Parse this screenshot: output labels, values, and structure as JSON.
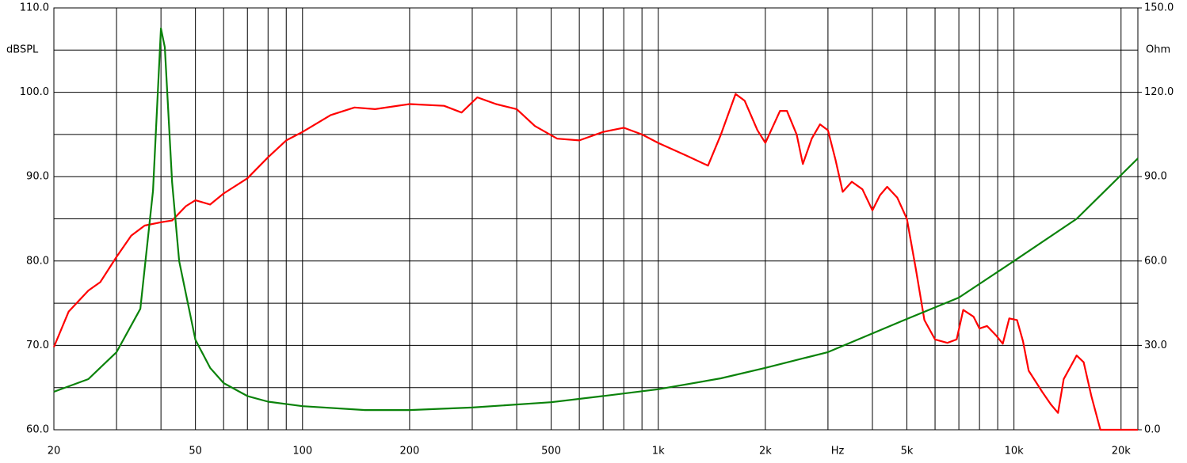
{
  "chart_data": {
    "type": "line",
    "x_scale": "log",
    "xlabel": "Hz",
    "ylabel": "dBSPL",
    "y2label": "Ohm",
    "xlim": [
      20,
      22300
    ],
    "ylim": [
      60,
      110
    ],
    "y2lim": [
      0,
      150
    ],
    "grid": true,
    "xticks": [
      20,
      50,
      100,
      200,
      500,
      {
        "value": 1000,
        "label": "1k"
      },
      {
        "value": 2000,
        "label": "2k"
      },
      {
        "value": 5000,
        "label": "5k"
      },
      {
        "value": 10000,
        "label": "10k"
      },
      {
        "value": 20000,
        "label": "20k"
      }
    ],
    "xminor": [
      30,
      40,
      60,
      70,
      80,
      90,
      300,
      400,
      600,
      700,
      800,
      900,
      3000,
      4000,
      6000,
      7000,
      8000,
      9000
    ],
    "yticks": [
      {
        "value": 60,
        "label": "60.0"
      },
      {
        "value": 70,
        "label": "70.0"
      },
      {
        "value": 80,
        "label": "80.0"
      },
      {
        "value": 90,
        "label": "90.0"
      },
      {
        "value": 100,
        "label": "100.0"
      },
      {
        "value": 110,
        "label": "110.0"
      }
    ],
    "yminor": [
      65,
      75,
      85,
      95,
      105
    ],
    "y2ticks": [
      {
        "value": 0,
        "label": "0.0"
      },
      {
        "value": 30,
        "label": "30.0"
      },
      {
        "value": 60,
        "label": "60.0"
      },
      {
        "value": 90,
        "label": "90.0"
      },
      {
        "value": 120,
        "label": "120.0"
      },
      {
        "value": 150,
        "label": "150.0"
      }
    ],
    "series": [
      {
        "color": "#ff0000",
        "axis": "y",
        "x": [
          20,
          22,
          25,
          27,
          30,
          33,
          36,
          40,
          43,
          47,
          50,
          55,
          60,
          70,
          80,
          90,
          100,
          120,
          140,
          160,
          200,
          250,
          280,
          310,
          350,
          400,
          450,
          520,
          600,
          700,
          800,
          900,
          1000,
          1200,
          1380,
          1500,
          1650,
          1750,
          1900,
          2000,
          2200,
          2300,
          2450,
          2550,
          2700,
          2850,
          3000,
          3150,
          3300,
          3500,
          3750,
          4000,
          4200,
          4400,
          4700,
          5000,
          5300,
          5600,
          6000,
          6500,
          6900,
          7200,
          7700,
          8000,
          8400,
          8900,
          9300,
          9700,
          10200,
          10600,
          11000,
          12000,
          12700,
          13300,
          13800,
          15000,
          15700,
          16500,
          17500,
          22300
        ],
        "values": [
          69.8,
          74,
          76.5,
          77.5,
          80.5,
          83,
          84.2,
          84.6,
          84.8,
          86.5,
          87.2,
          86.7,
          88,
          89.8,
          92.3,
          94.3,
          95.3,
          97.3,
          98.2,
          98.0,
          98.6,
          98.4,
          97.6,
          99.4,
          98.6,
          98.0,
          96.0,
          94.5,
          94.3,
          95.3,
          95.8,
          95.0,
          94.0,
          92.5,
          91.3,
          95,
          99.8,
          99,
          95.5,
          94,
          97.8,
          97.8,
          95,
          91.5,
          94.5,
          96.2,
          95.5,
          92,
          88.2,
          89.4,
          88.5,
          86,
          87.8,
          88.8,
          87.5,
          85,
          79,
          73,
          70.7,
          70.3,
          70.7,
          74.2,
          73.4,
          72,
          72.3,
          71.2,
          70.2,
          73.2,
          73,
          70.5,
          67,
          64.5,
          63,
          62,
          66,
          68.8,
          68,
          64,
          60,
          60
        ]
      },
      {
        "color": "#0a820a",
        "axis": "y2",
        "x": [
          20,
          25,
          30,
          35,
          38,
          40,
          41,
          43,
          45,
          50,
          55,
          60,
          70,
          80,
          100,
          150,
          200,
          300,
          500,
          700,
          1000,
          1500,
          2000,
          3000,
          5000,
          7000,
          10000,
          15000,
          22300
        ],
        "values": [
          13.5,
          18,
          27.6,
          43,
          85,
          142.7,
          136,
          88,
          60,
          32,
          22,
          16.6,
          12,
          10,
          8.4,
          7,
          7,
          7.9,
          9.8,
          12,
          14.4,
          18.3,
          22,
          27.6,
          39.4,
          47,
          60,
          75,
          96.5
        ]
      }
    ]
  }
}
